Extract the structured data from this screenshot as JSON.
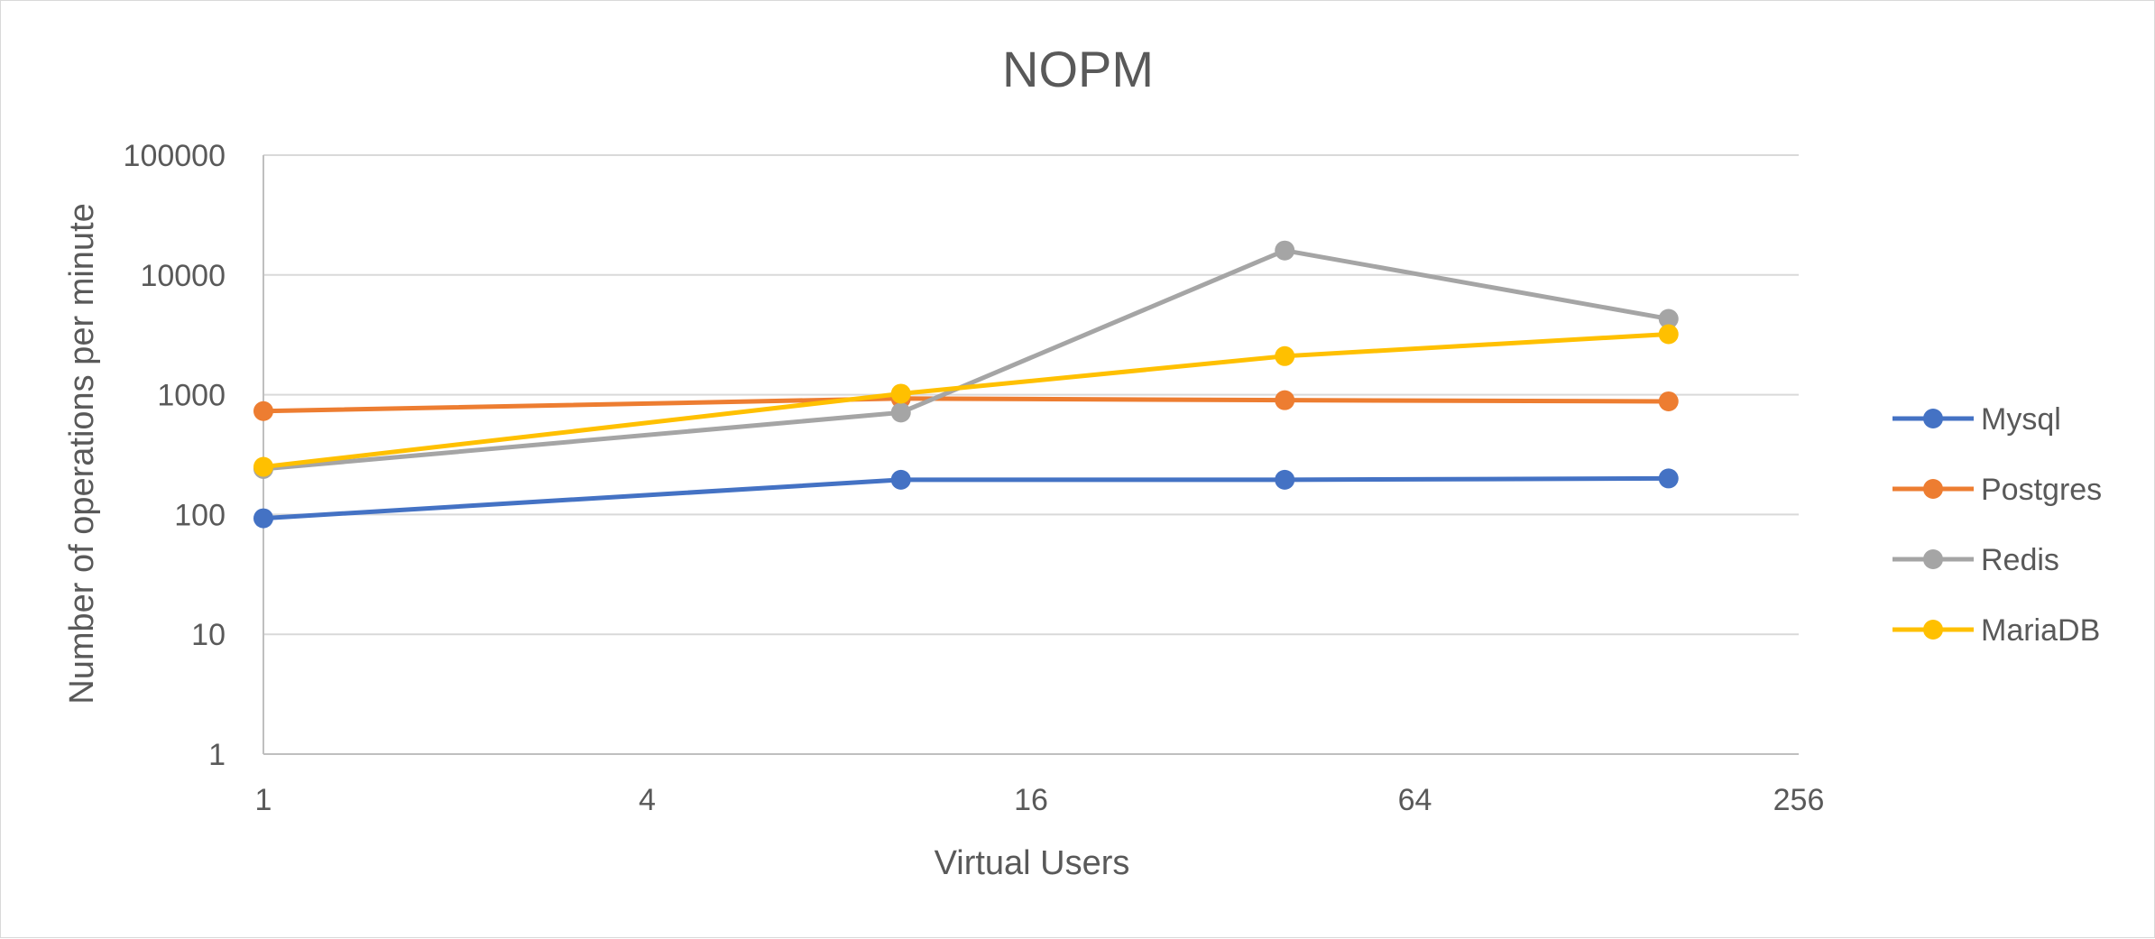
{
  "chart_data": {
    "type": "line",
    "title": "NOPM",
    "xlabel": "Virtual Users",
    "ylabel": "Number of operations per minute",
    "x_scale": "log2",
    "y_scale": "log10",
    "xlim": [
      1,
      256
    ],
    "ylim": [
      1,
      100000
    ],
    "x_ticks": [
      "1",
      "4",
      "16",
      "64",
      "256"
    ],
    "y_ticks": [
      "100000",
      "10000",
      "1000",
      "100",
      "10",
      "1"
    ],
    "x": [
      1,
      10,
      40,
      160
    ],
    "series": [
      {
        "name": "Mysql",
        "color": "#4472C4",
        "values": [
          93,
          195,
          195,
          200
        ]
      },
      {
        "name": "Postgres",
        "color": "#ED7D31",
        "values": [
          730,
          930,
          900,
          880
        ]
      },
      {
        "name": "Redis",
        "color": "#A5A5A5",
        "values": [
          240,
          710,
          16000,
          4300
        ]
      },
      {
        "name": "MariaDB",
        "color": "#FFC000",
        "values": [
          250,
          1020,
          2100,
          3200
        ]
      }
    ],
    "grid": true,
    "legend_position": "right"
  }
}
